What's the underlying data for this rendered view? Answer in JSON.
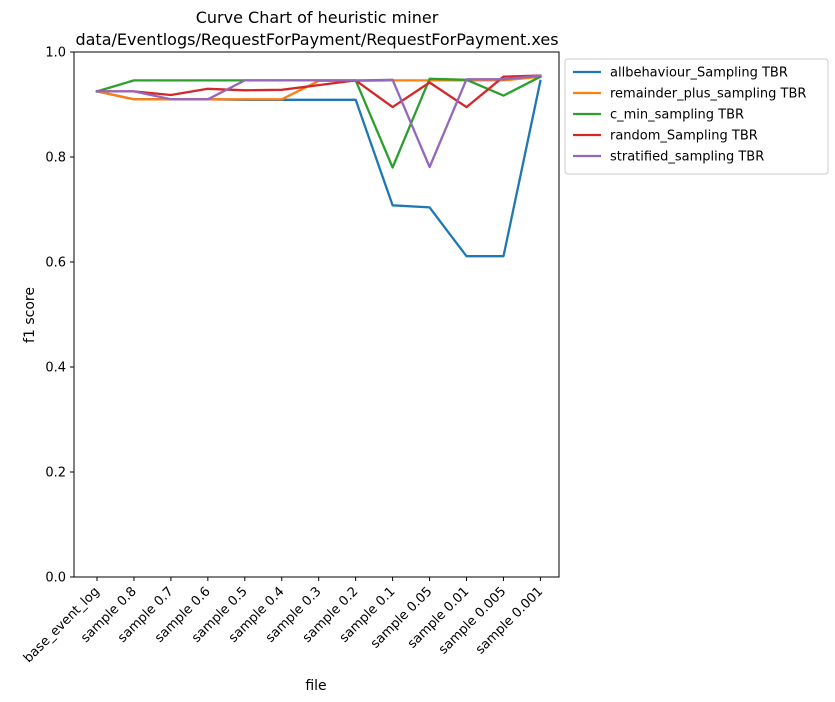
{
  "chart_data": {
    "type": "line",
    "title_line1": "Curve Chart of heuristic miner",
    "title_line2": "data/Eventlogs/RequestForPayment/RequestForPayment.xes",
    "xlabel": "file",
    "ylabel": "f1 score",
    "ylim": [
      0.0,
      1.0
    ],
    "yticks": [
      "0.0",
      "0.2",
      "0.4",
      "0.6",
      "0.8",
      "1.0"
    ],
    "grid": false,
    "legend_position": "outside upper right",
    "categories": [
      "base_event_log",
      "sample 0.8",
      "sample 0.7",
      "sample 0.6",
      "sample 0.5",
      "sample 0.4",
      "sample 0.3",
      "sample 0.2",
      "sample 0.1",
      "sample 0.05",
      "sample 0.01",
      "sample 0.005",
      "sample 0.001"
    ],
    "series": [
      {
        "name": "allbehaviour_Sampling TBR",
        "color": "#1f77b4",
        "values": [
          0.925,
          0.91,
          0.91,
          0.91,
          0.909,
          0.909,
          0.909,
          0.909,
          0.708,
          0.704,
          0.611,
          0.611,
          0.945
        ]
      },
      {
        "name": "remainder_plus_sampling TBR",
        "color": "#ff7f0e",
        "values": [
          0.925,
          0.91,
          0.91,
          0.91,
          0.91,
          0.91,
          0.945,
          0.945,
          0.946,
          0.946,
          0.946,
          0.946,
          0.953
        ]
      },
      {
        "name": "c_min_sampling TBR",
        "color": "#2ca02c",
        "values": [
          0.925,
          0.946,
          0.946,
          0.946,
          0.946,
          0.946,
          0.946,
          0.946,
          0.78,
          0.949,
          0.947,
          0.917,
          0.953
        ]
      },
      {
        "name": "random_Sampling TBR",
        "color": "#d62728",
        "values": [
          0.925,
          0.925,
          0.918,
          0.93,
          0.927,
          0.928,
          0.937,
          0.946,
          0.895,
          0.942,
          0.895,
          0.953,
          0.955
        ]
      },
      {
        "name": "stratified_sampling TBR",
        "color": "#9467bd",
        "values": [
          0.925,
          0.925,
          0.91,
          0.91,
          0.946,
          0.946,
          0.946,
          0.946,
          0.947,
          0.781,
          0.948,
          0.948,
          0.955
        ]
      }
    ]
  }
}
